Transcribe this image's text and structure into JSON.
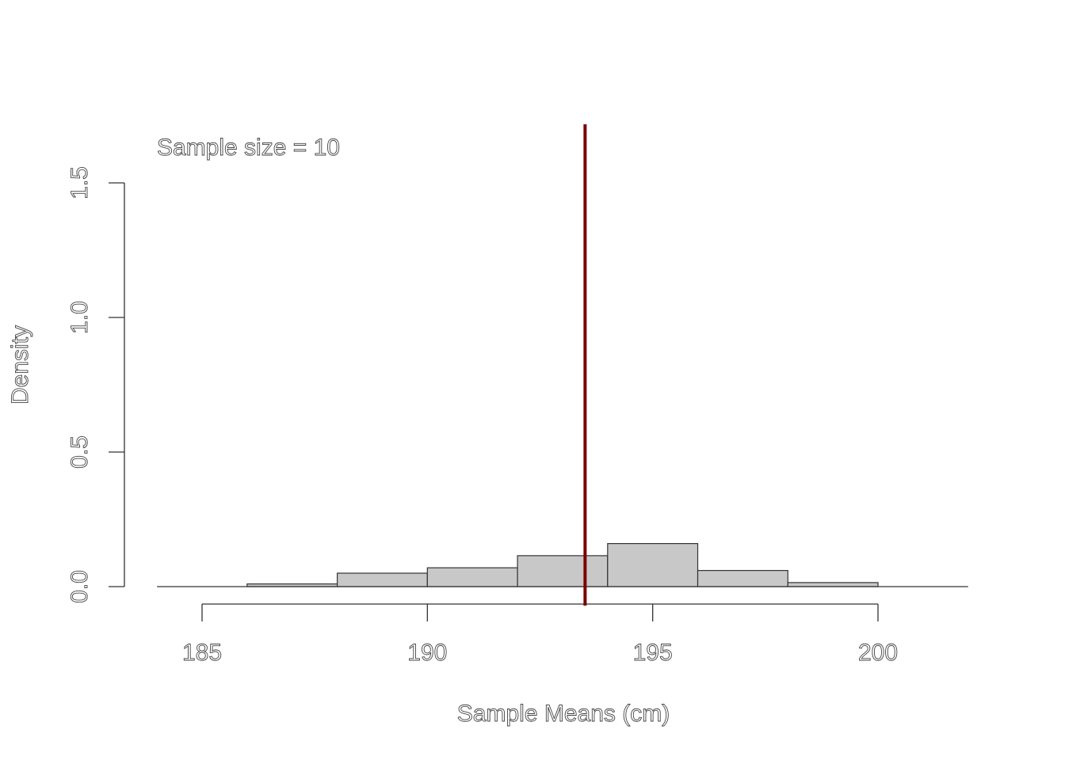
{
  "chart_data": {
    "type": "bar",
    "subtype": "histogram",
    "title": "",
    "annotation": "Sample size = 10",
    "xlabel": "Sample Means (cm)",
    "ylabel": "Density",
    "xlim": [
      184,
      202
    ],
    "ylim": [
      0,
      1.5
    ],
    "bin_edges": [
      186,
      188,
      190,
      192,
      194,
      196,
      198,
      200
    ],
    "values": [
      0.01,
      0.05,
      0.07,
      0.115,
      0.16,
      0.06,
      0.015
    ],
    "x_ticks": [
      185,
      190,
      195,
      200
    ],
    "x_tick_labels": [
      "185",
      "190",
      "195",
      "200"
    ],
    "y_ticks": [
      0,
      0.5,
      1,
      1.5
    ],
    "y_tick_labels": [
      "0.0",
      "0.5",
      "1.0",
      "1.5"
    ],
    "reference_line": {
      "x": 193.5,
      "color": "#7a0000"
    },
    "bar_color": "#c8c8c8",
    "grid": false,
    "legend": "none"
  }
}
